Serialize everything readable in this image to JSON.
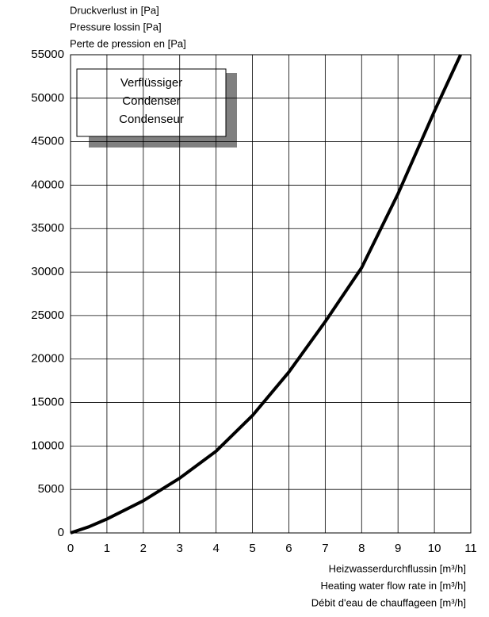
{
  "chart_data": {
    "type": "line",
    "y_label": [
      "Druckverlust in [Pa]",
      "Pressure lossin [Pa]",
      "Perte de pression en [Pa]"
    ],
    "x_label": [
      "Heizwasserdurchflussin [m³/h]",
      "Heating water flow rate in [m³/h]",
      "Débit d'eau de chauffageen [m³/h]"
    ],
    "legend_box": [
      "Verflüssiger",
      "Condenser",
      "Condenseur"
    ],
    "series": [
      {
        "name": null,
        "color": "#000000",
        "x": [
          0,
          0.5,
          1,
          2,
          3,
          4,
          5,
          6,
          7,
          8,
          9,
          10,
          10.72
        ],
        "values": [
          0,
          700,
          1600,
          3700,
          6300,
          9400,
          13500,
          18500,
          24300,
          30500,
          39000,
          48500,
          55000
        ]
      }
    ],
    "xlim": [
      0,
      11
    ],
    "xticks": [
      0,
      1,
      2,
      3,
      4,
      5,
      6,
      7,
      8,
      9,
      10,
      11
    ],
    "ylim": [
      0,
      55000
    ],
    "yticks": [
      0,
      5000,
      10000,
      15000,
      20000,
      25000,
      30000,
      35000,
      40000,
      45000,
      50000,
      55000
    ],
    "grid": true
  }
}
